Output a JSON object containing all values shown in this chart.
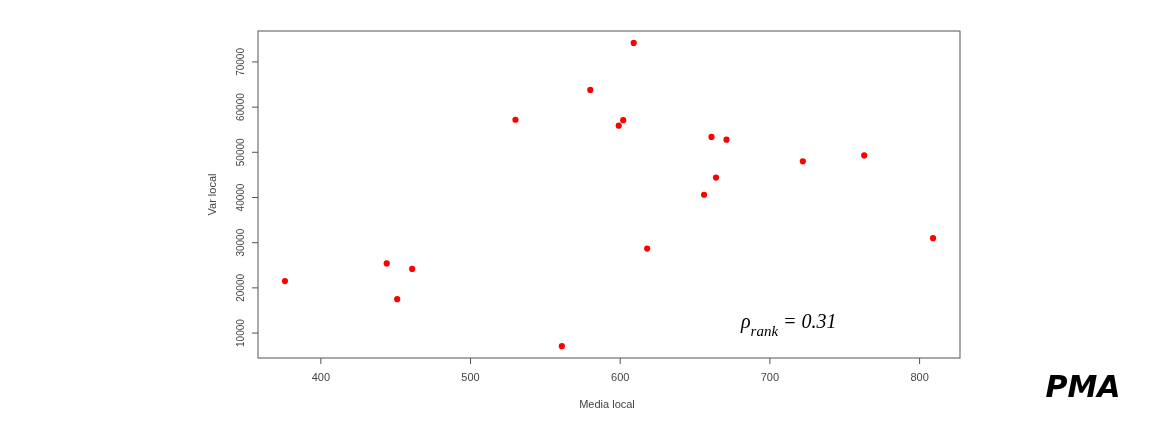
{
  "chart_data": {
    "type": "scatter",
    "xlabel": "Media local",
    "ylabel": "Var local",
    "color": "#ff0000",
    "marker": "circle",
    "grid": false,
    "x": [
      376,
      444,
      451,
      461,
      530,
      561,
      580,
      609,
      599,
      602,
      661,
      671,
      722,
      763,
      664,
      656,
      618,
      809
    ],
    "values": [
      21500,
      25400,
      17500,
      24200,
      57200,
      7100,
      63800,
      74200,
      55900,
      57100,
      53400,
      52800,
      48000,
      49300,
      44400,
      40600,
      28700,
      31000
    ],
    "xlim": [
      358,
      827
    ],
    "xticks": [
      400,
      500,
      600,
      700,
      800
    ],
    "ylim": [
      4480,
      76840
    ],
    "yticks": [
      10000,
      20000,
      30000,
      40000,
      50000,
      60000,
      70000
    ],
    "annotations": [
      "ρ$_{rank}$ = 0.31",
      "PMA"
    ]
  }
}
